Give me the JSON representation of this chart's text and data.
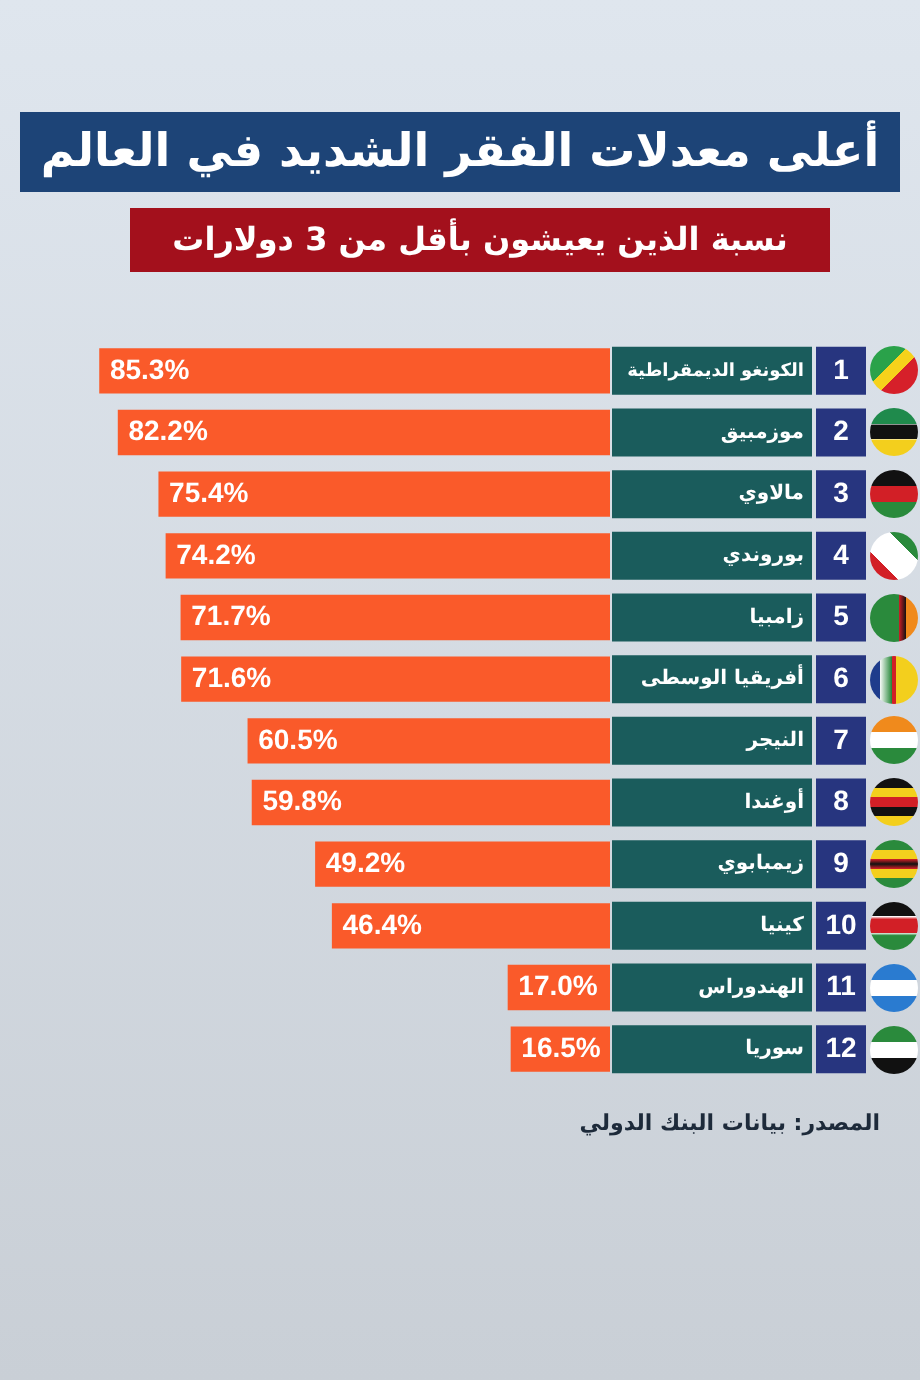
{
  "chart_data": {
    "type": "bar",
    "orientation": "horizontal",
    "title": "أعلى معدلات الفقر الشديد في العالم",
    "subtitle": "نسبة الذين يعيشون بأقل من 3 دولارات",
    "categories": [
      "الكونغو الديمقراطية",
      "موزمبيق",
      "مالاوي",
      "بوروندي",
      "زامبيا",
      "أفريقيا الوسطى",
      "النيجر",
      "أوغندا",
      "زيمبابوي",
      "كينيا",
      "الهندوراس",
      "سوريا"
    ],
    "values": [
      85.3,
      82.2,
      75.4,
      74.2,
      71.7,
      71.6,
      60.5,
      59.8,
      49.2,
      46.4,
      17.0,
      16.5
    ],
    "value_labels": [
      "85.3%",
      "82.2%",
      "75.4%",
      "74.2%",
      "71.7%",
      "71.6%",
      "60.5%",
      "59.8%",
      "49.2%",
      "46.4%",
      "17.0%",
      "16.5%"
    ],
    "color": "#fa5a2a",
    "tick_labels": "y",
    "legend": false,
    "annotations": [
      "1",
      "2",
      "3",
      "4",
      "5",
      "6",
      "7",
      "8",
      "9",
      "10",
      "11",
      "12",
      "المصدر: بيانات البنك الدولي"
    ]
  }
}
